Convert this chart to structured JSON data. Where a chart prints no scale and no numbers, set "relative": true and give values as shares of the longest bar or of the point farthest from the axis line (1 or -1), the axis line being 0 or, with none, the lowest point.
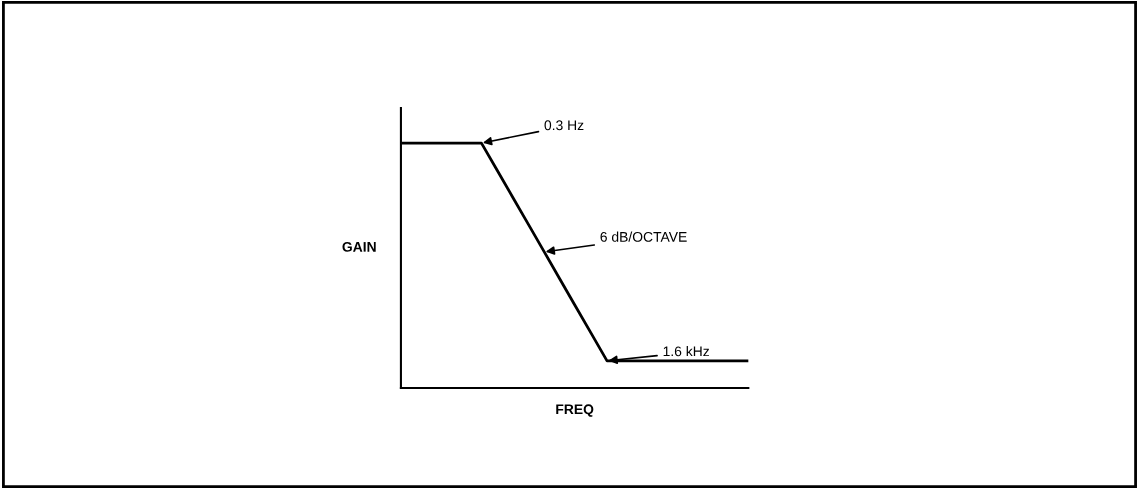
{
  "chart_data": {
    "type": "line",
    "relative": true,
    "xlabel": "FREQ",
    "ylabel": "GAIN",
    "color": "#000000",
    "categories": [
      null,
      null,
      null,
      null,
      null,
      null,
      null,
      null,
      null,
      null,
      null,
      null,
      null,
      null,
      null,
      null,
      null,
      null,
      null,
      null,
      null,
      null,
      null
    ],
    "values": [
      1,
      1,
      1,
      1,
      1,
      1,
      0.889,
      0.778,
      0.667,
      0.556,
      0.444,
      0.333,
      0.222,
      0.111,
      0.111,
      0.111,
      0.111,
      0.111,
      0.111,
      0.111,
      0.111,
      0.111,
      0.111
    ],
    "annotations": [
      "0.3 Hz",
      "6 dB/OCTAVE",
      "1.6 kHz"
    ],
    "grid": false,
    "legend": false,
    "marker": "none",
    "line_style": "solid"
  }
}
